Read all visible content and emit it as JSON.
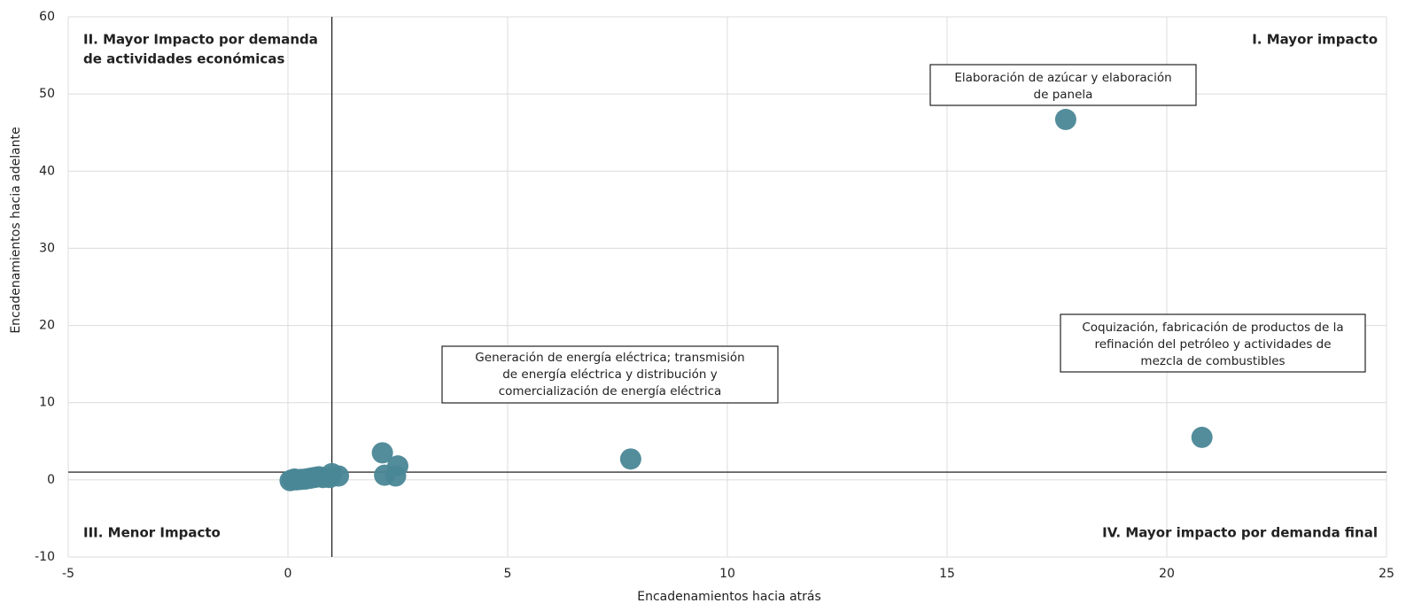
{
  "chart_data": {
    "type": "scatter",
    "x_label": "Encadenamientos hacia atrás",
    "y_label": "Encadenamientos hacia adelante",
    "xlim": [
      -5,
      25
    ],
    "xticks": [
      -5,
      0,
      5,
      10,
      15,
      20,
      25
    ],
    "ylim": [
      -10,
      60
    ],
    "yticks": [
      -10,
      0,
      10,
      20,
      30,
      40,
      50,
      60
    ],
    "grid": true,
    "reference_lines": {
      "x": 1,
      "y": 1
    },
    "series": [
      {
        "color": "#4a8796",
        "x": [
          17.7,
          20.8,
          7.8,
          2.15,
          2.5,
          2.2,
          2.45,
          1.0,
          1.15,
          0.95,
          0.7,
          0.6,
          0.5,
          0.4,
          0.3,
          0.2,
          0.15,
          0.1,
          0.05,
          0.8
        ],
        "y": [
          46.7,
          5.5,
          2.7,
          3.5,
          1.8,
          0.6,
          0.5,
          0.8,
          0.5,
          0.3,
          0.4,
          0.3,
          0.2,
          0.1,
          0.05,
          0.0,
          0.1,
          0.0,
          -0.1,
          0.3
        ]
      }
    ],
    "annotations": [
      {
        "lines": [
          "Elaboración de azúcar y elaboración",
          "de panela"
        ]
      },
      {
        "lines": [
          "Generación de energía eléctrica; transmisión",
          "de energía eléctrica y distribución y",
          "comercialización de energía eléctrica"
        ]
      },
      {
        "lines": [
          "Coquización, fabricación de productos de la",
          "refinación del petróleo y actividades de",
          "mezcla de combustibles"
        ]
      }
    ],
    "quadrant_labels": [
      {
        "lines": [
          "I. Mayor impacto"
        ]
      },
      {
        "lines": [
          "II. Mayor Impacto por demanda",
          "de actividades económicas"
        ]
      },
      {
        "lines": [
          "III. Menor Impacto"
        ]
      },
      {
        "lines": [
          "IV. Mayor impacto por demanda final"
        ]
      }
    ]
  }
}
